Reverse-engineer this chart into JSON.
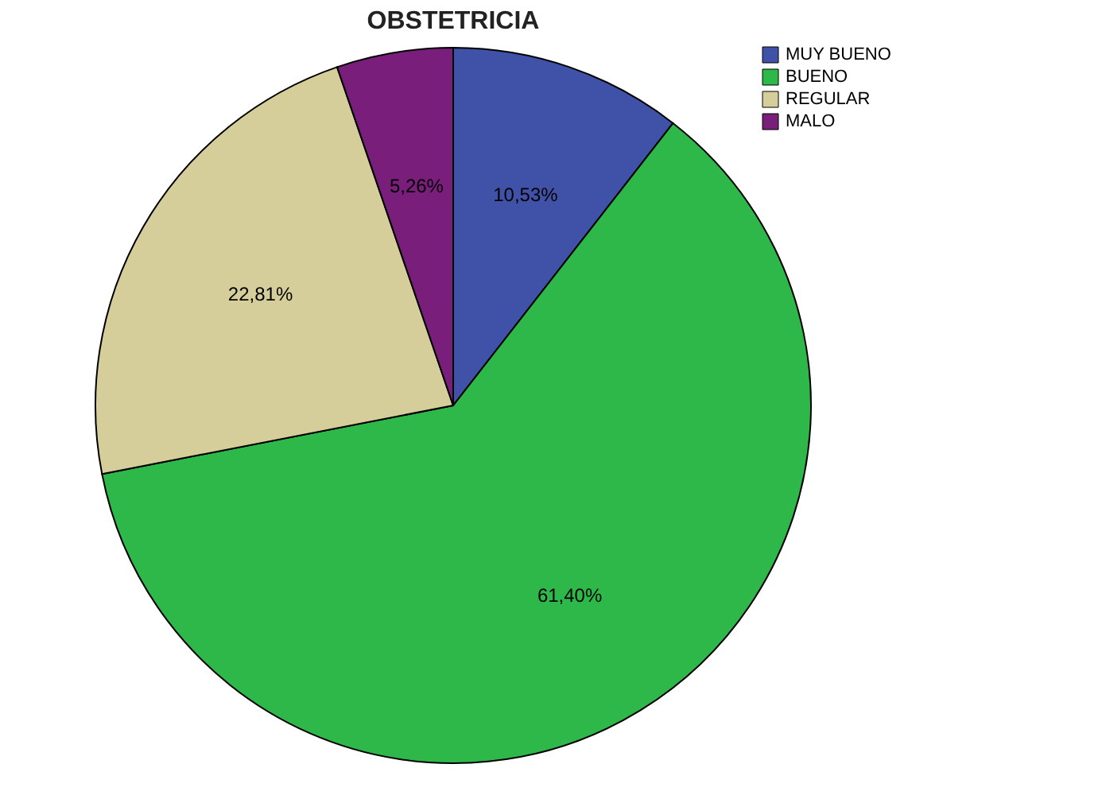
{
  "chart_data": {
    "type": "pie",
    "title": "OBSTETRICIA",
    "categories": [
      "MUY BUENO",
      "BUENO",
      "REGULAR",
      "MALO"
    ],
    "values": [
      10.53,
      61.4,
      22.81,
      5.26
    ],
    "colors": [
      "#3f52a8",
      "#2fb84a",
      "#d5cd9a",
      "#7a1e7c"
    ],
    "value_labels": [
      "10,53%",
      "61,40%",
      "22,81%",
      "5,26%"
    ],
    "legend": "top right"
  }
}
